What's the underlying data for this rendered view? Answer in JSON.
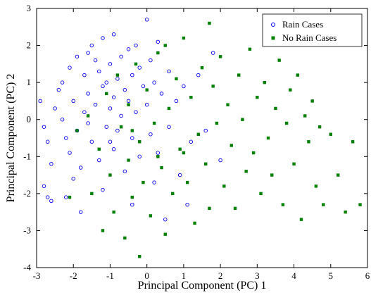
{
  "chart_data": {
    "type": "scatter",
    "title": "",
    "xlabel": "Principal Component (PC) 1",
    "ylabel": "Principal Component (PC) 2",
    "xlim": [
      -3,
      6
    ],
    "ylim": [
      -4,
      3
    ],
    "xticks": [
      "-3",
      "-2",
      "-1",
      "0",
      "1",
      "2",
      "3",
      "4",
      "5",
      "6"
    ],
    "yticks": [
      "3",
      "2",
      "1",
      "0",
      "-1",
      "-2",
      "-3",
      "-4"
    ],
    "grid": false,
    "legend_position": "top-right",
    "series": [
      {
        "name": "Rain Cases",
        "marker": "open-circle",
        "color": "#0000ff",
        "points": [
          [
            -2.9,
            0.5
          ],
          [
            -2.8,
            -0.2
          ],
          [
            -2.7,
            -0.6
          ],
          [
            -2.8,
            -1.8
          ],
          [
            -2.7,
            -2.1
          ],
          [
            -2.6,
            -1.2
          ],
          [
            -2.5,
            0.3
          ],
          [
            -2.4,
            0.8
          ],
          [
            -2.3,
            1.0
          ],
          [
            -2.3,
            0.0
          ],
          [
            -2.2,
            -0.5
          ],
          [
            -2.1,
            1.4
          ],
          [
            -2.1,
            -0.9
          ],
          [
            -2.0,
            0.5
          ],
          [
            -1.9,
            1.7
          ],
          [
            -1.9,
            -0.3
          ],
          [
            -1.8,
            -2.5
          ],
          [
            -1.8,
            -1.3
          ],
          [
            -1.7,
            1.2
          ],
          [
            -1.7,
            0.2
          ],
          [
            -1.6,
            1.8
          ],
          [
            -1.6,
            0.7
          ],
          [
            -1.5,
            2.0
          ],
          [
            -1.5,
            -0.6
          ],
          [
            -1.4,
            1.6
          ],
          [
            -1.4,
            0.4
          ],
          [
            -1.3,
            1.3
          ],
          [
            -1.3,
            -1.1
          ],
          [
            -1.2,
            2.2
          ],
          [
            -1.2,
            0.9
          ],
          [
            -1.2,
            -1.9
          ],
          [
            -1.1,
            1.0
          ],
          [
            -1.1,
            -0.2
          ],
          [
            -1.0,
            1.5
          ],
          [
            -1.0,
            0.3
          ],
          [
            -0.9,
            2.3
          ],
          [
            -0.9,
            0.6
          ],
          [
            -0.9,
            -0.8
          ],
          [
            -0.8,
            1.1
          ],
          [
            -0.8,
            -0.3
          ],
          [
            -0.7,
            1.7
          ],
          [
            -0.7,
            0.1
          ],
          [
            -0.6,
            0.8
          ],
          [
            -0.6,
            -1.4
          ],
          [
            -0.5,
            1.9
          ],
          [
            -0.5,
            0.5
          ],
          [
            -0.4,
            1.2
          ],
          [
            -0.4,
            -0.5
          ],
          [
            -0.3,
            2.0
          ],
          [
            -0.3,
            0.2
          ],
          [
            -0.2,
            1.4
          ],
          [
            -0.2,
            -1.0
          ],
          [
            -0.1,
            0.9
          ],
          [
            0.0,
            2.7
          ],
          [
            0.0,
            0.4
          ],
          [
            0.1,
            1.6
          ],
          [
            0.1,
            -0.4
          ],
          [
            0.2,
            1.0
          ],
          [
            0.3,
            2.1
          ],
          [
            0.3,
            -0.9
          ],
          [
            0.4,
            0.7
          ],
          [
            0.5,
            -2.7
          ],
          [
            0.6,
            1.3
          ],
          [
            0.6,
            -0.2
          ],
          [
            0.8,
            0.5
          ],
          [
            0.9,
            -1.5
          ],
          [
            1.0,
            0.9
          ],
          [
            1.2,
            -0.6
          ],
          [
            1.4,
            1.2
          ],
          [
            1.6,
            -0.3
          ],
          [
            1.8,
            1.8
          ],
          [
            2.0,
            -1.1
          ],
          [
            -2.6,
            -2.2
          ],
          [
            -2.2,
            -2.1
          ],
          [
            -2.0,
            -1.6
          ],
          [
            -1.6,
            -0.1
          ],
          [
            -1.0,
            -0.6
          ],
          [
            -0.4,
            -2.3
          ],
          [
            0.2,
            -1.7
          ],
          [
            1.1,
            -2.3
          ]
        ]
      },
      {
        "name": "No Rain Cases",
        "marker": "filled-square",
        "color": "#007f00",
        "points": [
          [
            -2.1,
            -2.1
          ],
          [
            -1.9,
            -0.3
          ],
          [
            -1.5,
            -2.0
          ],
          [
            -1.3,
            -0.8
          ],
          [
            -1.2,
            -3.0
          ],
          [
            -1.1,
            0.7
          ],
          [
            -1.0,
            -1.5
          ],
          [
            -0.9,
            -2.5
          ],
          [
            -0.8,
            1.2
          ],
          [
            -0.7,
            -0.2
          ],
          [
            -0.6,
            -3.2
          ],
          [
            -0.5,
            0.4
          ],
          [
            -0.5,
            -1.1
          ],
          [
            -0.4,
            -2.1
          ],
          [
            -0.3,
            1.5
          ],
          [
            -0.2,
            -0.6
          ],
          [
            -0.2,
            -3.7
          ],
          [
            -0.1,
            -1.7
          ],
          [
            0.0,
            0.8
          ],
          [
            0.1,
            -2.6
          ],
          [
            0.2,
            -0.1
          ],
          [
            0.3,
            1.8
          ],
          [
            0.4,
            -1.3
          ],
          [
            0.5,
            -3.1
          ],
          [
            0.6,
            0.3
          ],
          [
            0.7,
            -2.0
          ],
          [
            0.8,
            1.1
          ],
          [
            0.9,
            -0.8
          ],
          [
            1.0,
            2.2
          ],
          [
            1.1,
            -1.7
          ],
          [
            1.2,
            0.6
          ],
          [
            1.3,
            -2.8
          ],
          [
            1.4,
            -0.4
          ],
          [
            1.5,
            1.4
          ],
          [
            1.6,
            -1.2
          ],
          [
            1.7,
            -2.4
          ],
          [
            1.8,
            0.9
          ],
          [
            1.9,
            -0.1
          ],
          [
            2.0,
            1.7
          ],
          [
            2.1,
            -1.8
          ],
          [
            2.2,
            0.4
          ],
          [
            2.3,
            -0.7
          ],
          [
            2.4,
            -2.4
          ],
          [
            2.5,
            1.2
          ],
          [
            2.6,
            0.0
          ],
          [
            2.7,
            -1.4
          ],
          [
            2.8,
            1.9
          ],
          [
            2.9,
            -0.9
          ],
          [
            3.0,
            0.6
          ],
          [
            3.1,
            -2.0
          ],
          [
            3.2,
            1.0
          ],
          [
            3.3,
            -0.5
          ],
          [
            3.4,
            -1.5
          ],
          [
            3.5,
            0.3
          ],
          [
            3.6,
            1.6
          ],
          [
            3.7,
            -2.3
          ],
          [
            3.8,
            -0.1
          ],
          [
            3.9,
            0.8
          ],
          [
            4.0,
            -1.2
          ],
          [
            4.1,
            1.2
          ],
          [
            4.2,
            -2.7
          ],
          [
            4.3,
            0.1
          ],
          [
            4.4,
            -0.6
          ],
          [
            4.5,
            0.5
          ],
          [
            4.6,
            -1.8
          ],
          [
            4.7,
            -0.2
          ],
          [
            4.8,
            -2.3
          ],
          [
            5.0,
            -0.4
          ],
          [
            5.2,
            -1.5
          ],
          [
            5.4,
            -2.5
          ],
          [
            5.6,
            -0.6
          ],
          [
            5.8,
            -2.3
          ],
          [
            1.7,
            2.6
          ],
          [
            0.5,
            2.0
          ],
          [
            -0.4,
            -0.3
          ],
          [
            0.3,
            -1.0
          ],
          [
            1.0,
            -0.9
          ],
          [
            -1.6,
            0.1
          ]
        ]
      }
    ]
  }
}
